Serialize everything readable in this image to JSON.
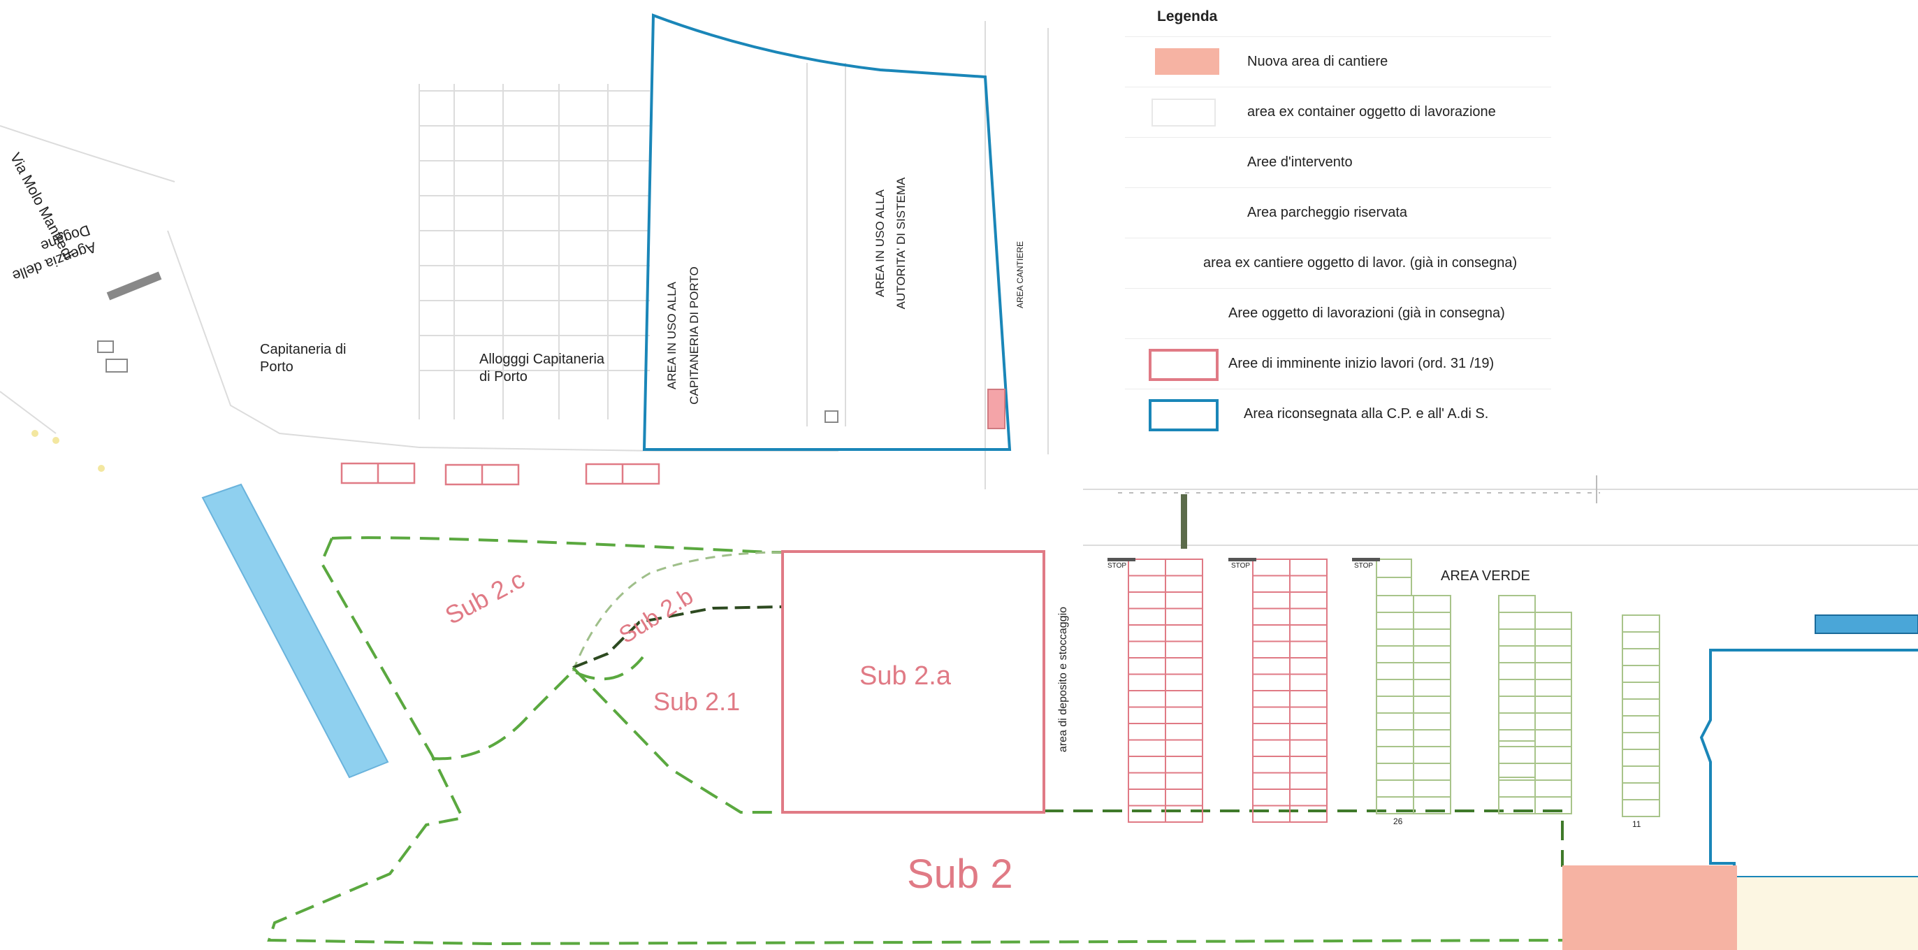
{
  "legend": {
    "title": "Legenda",
    "items": [
      {
        "label": "Nuova area di cantiere",
        "color": "#f6b3a3",
        "style": "fill"
      },
      {
        "label": "area ex container oggetto di lavorazione",
        "color": "#e8e8e8",
        "style": "outline-light"
      },
      {
        "label": "Aree d'intervento",
        "color": "",
        "style": "none"
      },
      {
        "label": "Area parcheggio riservata",
        "color": "",
        "style": "none"
      },
      {
        "label": "area ex cantiere oggetto di lavor. (già in consegna)",
        "color": "",
        "style": "none"
      },
      {
        "label": "Aree oggetto di lavorazioni (già in consegna)",
        "color": "",
        "style": "none"
      },
      {
        "label": "Aree di imminente inizio lavori (ord. 31 /19)",
        "color": "#e07a85",
        "style": "outline"
      },
      {
        "label": "Area  riconsegnata alla C.P. e all' A.di S.",
        "color": "#1a86b8",
        "style": "outline"
      }
    ]
  },
  "map_labels": {
    "via_molo": "Via Molo Manfredi",
    "agenzia_line1": "Agenzia delle",
    "agenzia_line2": "Dogane",
    "capitaneria_line1": "Capitaneria di",
    "capitaneria_line2": "Porto",
    "alloggi_line1": "Allogggi Capitaneria",
    "alloggi_line2": "di Porto",
    "area_cp_line1": "AREA IN USO ALLA",
    "area_cp_line2": "CAPITANERIA DI PORTO",
    "area_ads_line1": "AREA IN USO ALLA",
    "area_ads_line2": "AUTORITA' DI SISTEMA",
    "area_cantiere": "AREA CANTIERE",
    "area_verde": "AREA VERDE",
    "deposito": "area di deposito e stoccaggio",
    "stop1": "STOP",
    "stop2": "STOP",
    "stop3": "STOP",
    "num_26": "26",
    "num_11": "11"
  },
  "subs": {
    "sub2c": "Sub 2.c",
    "sub2b": "Sub 2.b",
    "sub21": "Sub 2.1",
    "sub2a": "Sub 2.a",
    "sub2": "Sub 2"
  },
  "colors": {
    "red_outline": "#e07a85",
    "blue_outline": "#1a86b8",
    "green_dash": "#5aa83f",
    "dark_dash": "#2d4a20",
    "salmon_fill": "#f6b3a3",
    "water_blue": "#8fd0ef",
    "cream_fill": "#fcf6e2",
    "green_grid": "#a8c48a"
  }
}
